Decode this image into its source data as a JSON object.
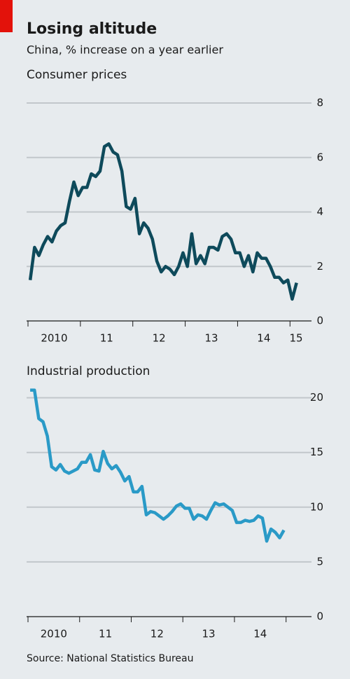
{
  "header": {
    "title": "Losing altitude",
    "subtitle": "China, % increase on a year earlier"
  },
  "footer": {
    "source": "Source: National Statistics Bureau"
  },
  "chart_data": [
    {
      "type": "line",
      "title": "Consumer prices",
      "color": "#0e4a5b",
      "grid": true,
      "x": [
        2010.042,
        2010.125,
        2010.208,
        2010.292,
        2010.375,
        2010.458,
        2010.542,
        2010.625,
        2010.708,
        2010.792,
        2010.875,
        2010.958,
        2011.042,
        2011.125,
        2011.208,
        2011.292,
        2011.375,
        2011.458,
        2011.542,
        2011.625,
        2011.708,
        2011.792,
        2011.875,
        2011.958,
        2012.042,
        2012.125,
        2012.208,
        2012.292,
        2012.375,
        2012.458,
        2012.542,
        2012.625,
        2012.708,
        2012.792,
        2012.875,
        2012.958,
        2013.042,
        2013.125,
        2013.208,
        2013.292,
        2013.375,
        2013.458,
        2013.542,
        2013.625,
        2013.708,
        2013.792,
        2013.875,
        2013.958,
        2014.042,
        2014.125,
        2014.208,
        2014.292,
        2014.375,
        2014.458,
        2014.542,
        2014.625,
        2014.708,
        2014.792,
        2014.875,
        2014.958,
        2015.042,
        2015.125
      ],
      "values": [
        1.5,
        2.7,
        2.4,
        2.8,
        3.1,
        2.9,
        3.3,
        3.5,
        3.6,
        4.4,
        5.1,
        4.6,
        4.9,
        4.9,
        5.4,
        5.3,
        5.5,
        6.4,
        6.5,
        6.2,
        6.1,
        5.5,
        4.2,
        4.1,
        4.5,
        3.2,
        3.6,
        3.4,
        3.0,
        2.2,
        1.8,
        2.0,
        1.9,
        1.7,
        2.0,
        2.5,
        2.0,
        3.2,
        2.1,
        2.4,
        2.1,
        2.7,
        2.7,
        2.6,
        3.1,
        3.2,
        3.0,
        2.5,
        2.5,
        2.0,
        2.4,
        1.8,
        2.5,
        2.3,
        2.3,
        2.0,
        1.6,
        1.6,
        1.4,
        1.5,
        0.8,
        1.4
      ],
      "xlim": [
        2010,
        2015.25
      ],
      "xticks": [
        {
          "value": 2010,
          "label": "2010"
        },
        {
          "value": 2011,
          "label": "11"
        },
        {
          "value": 2012,
          "label": "12"
        },
        {
          "value": 2013,
          "label": "13"
        },
        {
          "value": 2014,
          "label": "14"
        },
        {
          "value": 2015,
          "label": "15"
        }
      ],
      "ylim": [
        0,
        8
      ],
      "yticks": [
        0,
        2,
        4,
        6,
        8
      ]
    },
    {
      "type": "line",
      "title": "Industrial production",
      "color": "#2a9ac7",
      "grid": true,
      "x": [
        2010.042,
        2010.125,
        2010.208,
        2010.292,
        2010.375,
        2010.458,
        2010.542,
        2010.625,
        2010.708,
        2010.792,
        2010.875,
        2010.958,
        2011.042,
        2011.125,
        2011.208,
        2011.292,
        2011.375,
        2011.458,
        2011.542,
        2011.625,
        2011.708,
        2011.792,
        2011.875,
        2011.958,
        2012.042,
        2012.125,
        2012.208,
        2012.292,
        2012.375,
        2012.458,
        2012.542,
        2012.625,
        2012.708,
        2012.792,
        2012.875,
        2012.958,
        2013.042,
        2013.125,
        2013.208,
        2013.292,
        2013.375,
        2013.458,
        2013.542,
        2013.625,
        2013.708,
        2013.792,
        2013.875,
        2013.958,
        2014.042,
        2014.125,
        2014.208,
        2014.292,
        2014.375,
        2014.458,
        2014.542,
        2014.625,
        2014.708,
        2014.792,
        2014.875,
        2014.958
      ],
      "values": [
        20.7,
        20.7,
        18.1,
        17.8,
        16.5,
        13.7,
        13.4,
        13.9,
        13.3,
        13.1,
        13.3,
        13.5,
        14.1,
        14.1,
        14.8,
        13.4,
        13.3,
        15.1,
        14.0,
        13.5,
        13.8,
        13.2,
        12.4,
        12.8,
        11.4,
        11.4,
        11.9,
        9.3,
        9.6,
        9.5,
        9.2,
        8.9,
        9.2,
        9.6,
        10.1,
        10.3,
        9.9,
        9.9,
        8.9,
        9.3,
        9.2,
        8.9,
        9.7,
        10.4,
        10.2,
        10.3,
        10.0,
        9.7,
        8.6,
        8.6,
        8.8,
        8.7,
        8.8,
        9.2,
        9.0,
        6.9,
        8.0,
        7.7,
        7.2,
        7.9
      ],
      "xlim": [
        2010,
        2015.33
      ],
      "xticks": [
        {
          "value": 2010,
          "label": "2010"
        },
        {
          "value": 2011,
          "label": "11"
        },
        {
          "value": 2012,
          "label": "12"
        },
        {
          "value": 2013,
          "label": "13"
        },
        {
          "value": 2014,
          "label": "14"
        },
        {
          "value": 2015,
          "label": ""
        }
      ],
      "ylim": [
        0,
        21
      ],
      "yticks": [
        0,
        5,
        10,
        15,
        20
      ]
    }
  ]
}
